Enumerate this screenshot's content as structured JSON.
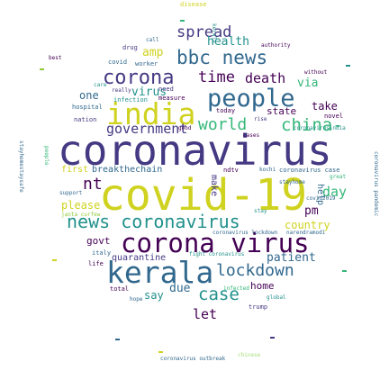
{
  "palette": {
    "yellow": "#cfd21f",
    "yellow_green": "#8fc93a",
    "green": "#35b779",
    "teal": "#21918c",
    "blue": "#31688e",
    "indigo": "#443983",
    "purple": "#440154",
    "light_green": "#a6e07a"
  },
  "words": {
    "coronavirus": "coronavirus",
    "covid19": "covid-19",
    "kerala": "kerala",
    "corona_virus": "corona virus",
    "india": "india",
    "people": "people",
    "bbc_news": "bbc news",
    "corona": "corona",
    "news_coronavirus": "news coronavirus",
    "lockdown": "lockdown",
    "china": "china-",
    "world": "world",
    "government": "government",
    "spread": "spread",
    "case": "case",
    "time": "time",
    "death": "death",
    "nt": "nt",
    "day": "day",
    "amp": "amp",
    "virus": "virus",
    "health": "health",
    "via": "via",
    "patient": "patient",
    "please": "please",
    "govt": "govt",
    "country": "country",
    "pm": "pm",
    "let": "let",
    "due": "due",
    "say": "say",
    "home": "home",
    "one": "one",
    "state": "state",
    "take": "take",
    "first": "first",
    "breakthechain": "breakthechain",
    "quarantine": "quarantine",
    "help": "help",
    "make": "make",
    "coronavirus_case": "coronavirus case",
    "coronavirus_outbreak": "coronavirus outbreak",
    "coronavirus_pandemic": "coronavirus pandemic",
    "disease": "disease",
    "stayhomestaysafe": "stayhomestaysafe",
    "chinese": "chinese",
    "hospital": "hospital",
    "nation": "nation",
    "infection": "infection",
    "worker": "worker",
    "drug": "drug",
    "best": "best",
    "measure": "measure",
    "need": "need",
    "today": "today",
    "novel": "novel",
    "covid": "covid",
    "italy": "italy",
    "life": "life",
    "trump": "trump",
    "global": "global",
    "hope": "hope",
    "total": "total",
    "ndtv": "ndtv",
    "kochi": "kochi",
    "narendramodi": "narendramodi",
    "stay": "stay",
    "fight_coronavirus": "fight coronavirus",
    "coronavirus_lockdown": "coronavirus lockdown",
    "covid2019": "covid2019",
    "great": "great",
    "call": "call",
    "authority": "authority",
    "janta_curfew": "janta curfew",
    "infected": "infected",
    "really": "really",
    "good": "good",
    "cases": "cases",
    "rise": "rise",
    "care": "care",
    "support": "support",
    "coronavirusindia": "coronavirusindia",
    "without": "without",
    "stayhome": "stayhome",
    "people_small": "people",
    "kerala_small": "kerala"
  }
}
